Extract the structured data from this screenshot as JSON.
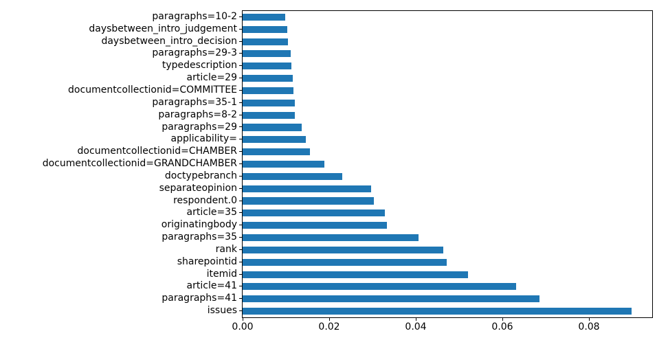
{
  "chart_data": {
    "type": "bar",
    "orientation": "horizontal",
    "title": "",
    "xlabel": "",
    "ylabel": "",
    "grid": false,
    "legend_position": "none",
    "bar_color": "#1f77b4",
    "axis_color": "#000000",
    "text_color": "#000000",
    "xlim": [
      0,
      0.0946
    ],
    "xticks": [
      0,
      0.02,
      0.04,
      0.06,
      0.08
    ],
    "xtick_labels": [
      "0.00",
      "0.02",
      "0.04",
      "0.06",
      "0.08"
    ],
    "categories": [
      "paragraphs=10-2",
      "daysbetween_intro_judgement",
      "daysbetween_intro_decision",
      "paragraphs=29-3",
      "typedescription",
      "article=29",
      "documentcollectionid=COMMITTEE",
      "paragraphs=35-1",
      "paragraphs=8-2",
      "paragraphs=29",
      "applicability=",
      "documentcollectionid=CHAMBER",
      "documentcollectionid=GRANDCHAMBER",
      "doctypebranch",
      "separateopinion",
      "respondent.0",
      "article=35",
      "originatingbody",
      "paragraphs=35",
      "rank",
      "sharepointid",
      "itemid",
      "article=41",
      "paragraphs=41",
      "issues"
    ],
    "values": [
      0.0098,
      0.0103,
      0.0104,
      0.0111,
      0.0112,
      0.0116,
      0.0118,
      0.012,
      0.0121,
      0.0137,
      0.0146,
      0.0156,
      0.0189,
      0.023,
      0.0296,
      0.0303,
      0.0329,
      0.0334,
      0.0407,
      0.0464,
      0.0471,
      0.0521,
      0.0632,
      0.0685,
      0.0899
    ]
  }
}
